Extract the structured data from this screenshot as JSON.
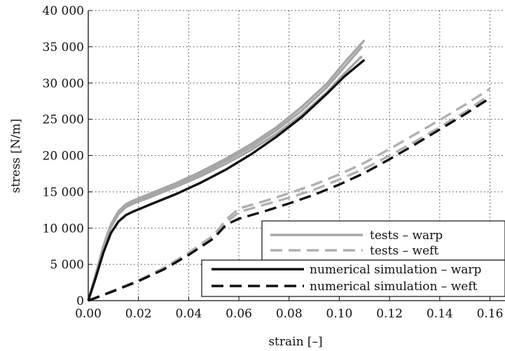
{
  "chart_data": {
    "type": "line",
    "title": "",
    "xlabel": "strain [–]",
    "ylabel": "stress [N/m]",
    "xlim": [
      0,
      0.166
    ],
    "ylim": [
      0,
      40000
    ],
    "xticks": [
      0.0,
      0.02,
      0.04,
      0.06,
      0.08,
      0.1,
      0.12,
      0.14,
      0.16
    ],
    "xtick_labels": [
      "0.00",
      "0.02",
      "0.04",
      "0.06",
      "0.08",
      "0.10",
      "0.12",
      "0.14",
      "0.16"
    ],
    "yticks": [
      0,
      5000,
      10000,
      15000,
      20000,
      25000,
      30000,
      35000,
      40000
    ],
    "ytick_labels": [
      "0",
      "5 000",
      "10 000",
      "15 000",
      "20 000",
      "25 000",
      "30 000",
      "35 000",
      "40 000"
    ],
    "grid": true,
    "legend_position": "bottom-right",
    "series": [
      {
        "name": "tests – warp",
        "color": "#a6a6a6",
        "dash": "solid",
        "curves": [
          {
            "x": [
              0,
              0.003,
              0.006,
              0.009,
              0.012,
              0.015,
              0.018,
              0.025,
              0.035,
              0.045,
              0.055,
              0.065,
              0.075,
              0.085,
              0.095,
              0.102,
              0.109
            ],
            "y": [
              0,
              3500,
              7200,
              10100,
              11900,
              12900,
              13400,
              14300,
              15700,
              17200,
              18900,
              20800,
              23000,
              25600,
              28700,
              31300,
              33700
            ]
          },
          {
            "x": [
              0,
              0.003,
              0.006,
              0.009,
              0.012,
              0.015,
              0.018,
              0.025,
              0.035,
              0.045,
              0.055,
              0.065,
              0.075,
              0.085,
              0.095,
              0.102,
              0.109
            ],
            "y": [
              0,
              3600,
              7400,
              10300,
              12100,
              13100,
              13600,
              14600,
              16000,
              17500,
              19300,
              21200,
              23500,
              26200,
              29400,
              32200,
              35000
            ]
          },
          {
            "x": [
              0,
              0.003,
              0.006,
              0.009,
              0.012,
              0.015,
              0.018,
              0.025,
              0.035,
              0.045,
              0.055,
              0.065,
              0.075,
              0.085,
              0.095,
              0.102,
              0.11
            ],
            "y": [
              0,
              3700,
              7500,
              10500,
              12300,
              13300,
              13800,
              14800,
              16200,
              17800,
              19600,
              21600,
              23900,
              26700,
              29900,
              32800,
              35900
            ]
          }
        ]
      },
      {
        "name": "tests – weft",
        "color": "#b0b0b0",
        "dash": "long",
        "curves": [
          {
            "x": [
              0,
              0.01,
              0.02,
              0.03,
              0.04,
              0.05,
              0.055,
              0.06,
              0.07,
              0.08,
              0.09,
              0.1,
              0.11,
              0.12,
              0.13,
              0.14,
              0.15,
              0.158
            ],
            "y": [
              0,
              1300,
              2700,
              4300,
              6300,
              8700,
              10800,
              12200,
              13200,
              14200,
              15300,
              16700,
              18200,
              20000,
              21900,
              23900,
              26000,
              27900
            ]
          },
          {
            "x": [
              0,
              0.01,
              0.02,
              0.03,
              0.04,
              0.05,
              0.055,
              0.06,
              0.07,
              0.08,
              0.09,
              0.1,
              0.11,
              0.12,
              0.13,
              0.14,
              0.15,
              0.16
            ],
            "y": [
              0,
              1400,
              2800,
              4500,
              6600,
              9000,
              11200,
              12700,
              13700,
              14800,
              16000,
              17400,
              19000,
              20900,
              22900,
              24900,
              27000,
              29200
            ]
          }
        ]
      },
      {
        "name": "numerical simulation – warp",
        "color": "#111111",
        "dash": "solid",
        "curves": [
          {
            "x": [
              0,
              0.003,
              0.006,
              0.009,
              0.012,
              0.015,
              0.018,
              0.025,
              0.035,
              0.045,
              0.055,
              0.065,
              0.075,
              0.085,
              0.095,
              0.102,
              0.11
            ],
            "y": [
              0,
              3200,
              6600,
              9300,
              10900,
              11800,
              12300,
              13300,
              14700,
              16300,
              18100,
              20200,
              22600,
              25300,
              28500,
              30900,
              33200
            ]
          }
        ]
      },
      {
        "name": "numerical simulation – weft",
        "color": "#111111",
        "dash": "long",
        "curves": [
          {
            "x": [
              0,
              0.01,
              0.02,
              0.03,
              0.04,
              0.05,
              0.055,
              0.06,
              0.07,
              0.08,
              0.09,
              0.1,
              0.11,
              0.12,
              0.13,
              0.14,
              0.15,
              0.159
            ],
            "y": [
              0,
              1300,
              2700,
              4300,
              6300,
              8600,
              10500,
              11300,
              12300,
              13400,
              14600,
              16000,
              17600,
              19500,
              21500,
              23600,
              25700,
              27700
            ]
          }
        ]
      }
    ]
  }
}
